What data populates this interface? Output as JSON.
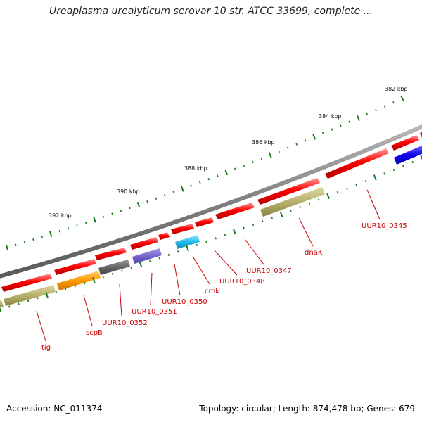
{
  "title": "Ureaplasma urealyticum serovar 10 str. ATCC 33699, complete ...",
  "footer": {
    "accession": "Accession: NC_011374",
    "summary": "Topology: circular; Length: 874,478 bp; Genes: 679"
  },
  "scale_labels": [
    "382 kbp",
    "384 kbp",
    "386 kbp",
    "388 kbp",
    "390 kbp",
    "392 kbp"
  ],
  "gene_labels": [
    "UUR10_0345",
    "dnaK",
    "UUR10_0347",
    "UUR10_0348",
    "cmk",
    "UUR10_0350",
    "UUR10_0351",
    "UUR10_0352",
    "scpB",
    "tig"
  ],
  "colors": {
    "backbone": "#808080",
    "cds_red": "#ff0000",
    "olive": "#b5b06a",
    "orange": "#ff9a00",
    "dark_gray": "#666666",
    "purple": "#7766cc",
    "cyan": "#22bbee",
    "blue": "#1100ee",
    "tick_green": "#1a7a1a",
    "label_red": "#cc0000"
  }
}
